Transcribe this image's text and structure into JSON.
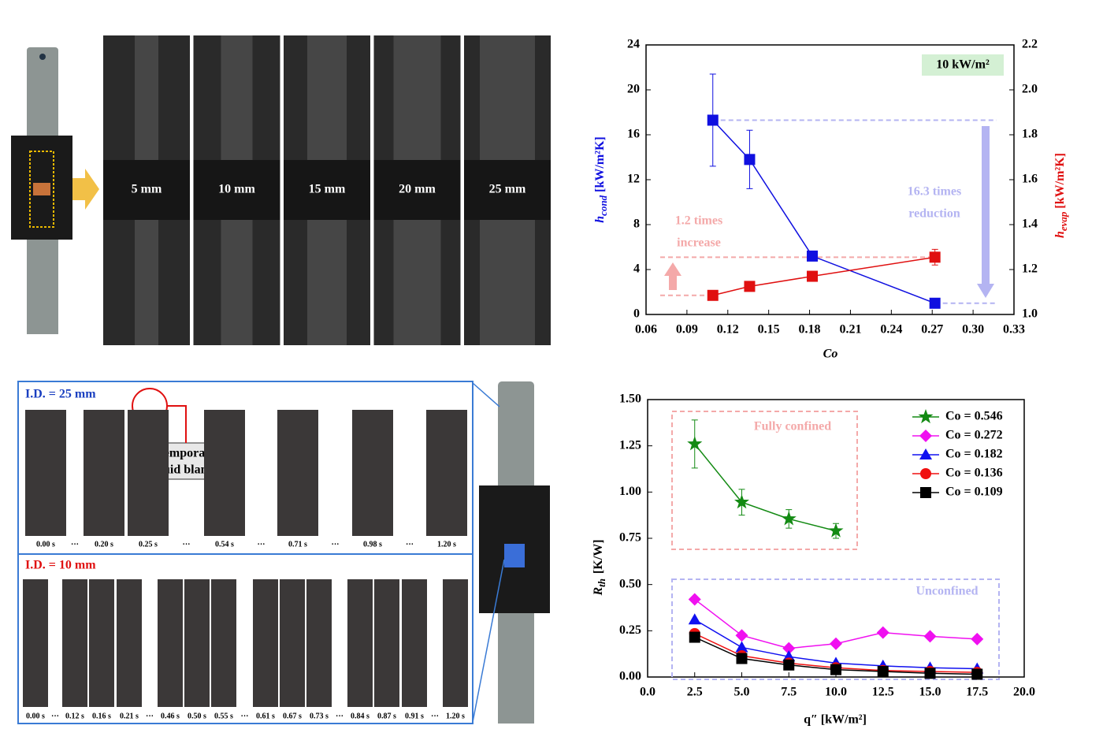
{
  "chart_data": [
    {
      "type": "line",
      "xlabel": "Co",
      "ylabel": {
        "symbol": "h",
        "subscript": "cond",
        "unit": "[kW/m²K]"
      },
      "y2label": {
        "symbol": "h",
        "subscript": "evap",
        "unit": "[kW/m²K]"
      },
      "x": [
        0.109,
        0.136,
        0.182,
        0.272
      ],
      "xlim": [
        0.06,
        0.33
      ],
      "xticks": [
        0.06,
        0.09,
        0.12,
        0.15,
        0.18,
        0.21,
        0.24,
        0.27,
        {
          "value": 0.3,
          "label": "0.30"
        },
        0.33
      ],
      "ylim": [
        0,
        24
      ],
      "yticks": [
        0,
        4,
        8,
        12,
        16,
        20,
        24
      ],
      "y2lim": [
        1,
        2.2
      ],
      "y2ticks": [
        {
          "value": 1,
          "label": "1.0"
        },
        1.2,
        1.4,
        1.6,
        1.8,
        {
          "value": 2,
          "label": "2.0"
        },
        2.2
      ],
      "series": [
        {
          "name": "h_cond",
          "color": "#1010e0",
          "values": [
            17.3,
            13.8,
            5.2,
            1.0
          ],
          "errors": [
            4.1,
            2.6,
            0.3,
            0.2
          ]
        },
        {
          "name": "h_evap",
          "color": "#e01010",
          "axis": "y2",
          "values": [
            1.085,
            1.125,
            1.17,
            1.255
          ],
          "errors": [
            0.01,
            0.015,
            0.02,
            0.035
          ]
        }
      ],
      "annotations": {
        "heat_flux": "10 kW/m²",
        "increase_1": "1.2 times",
        "increase_2": "increase",
        "reduction_1": "16.3 times",
        "reduction_2": "reduction"
      }
    },
    {
      "type": "line",
      "xlabel": "q″ [kW/m²]",
      "ylabel": {
        "symbol": "R",
        "subscript": "th",
        "unit": "[K/W]"
      },
      "x": [
        2.5,
        5,
        7.5,
        10,
        12.5,
        15,
        17.5
      ],
      "xlim": [
        0,
        20
      ],
      "xticks": [
        {
          "value": 0,
          "label": "0.0"
        },
        2.5,
        {
          "value": 5,
          "label": "5.0"
        },
        7.5,
        {
          "value": 10,
          "label": "10.0"
        },
        12.5,
        {
          "value": 15,
          "label": "15.0"
        },
        17.5,
        {
          "value": 20,
          "label": "20.0"
        }
      ],
      "ylim": [
        0,
        1.5
      ],
      "yticks": [
        {
          "value": 0,
          "label": "0.00"
        },
        0.25,
        {
          "value": 0.5,
          "label": "0.50"
        },
        0.75,
        {
          "value": 1,
          "label": "1.00"
        },
        1.25,
        {
          "value": 1.5,
          "label": "1.50"
        }
      ],
      "legend": "upper right",
      "series": [
        {
          "name": "Co = 0.546",
          "color": "#138a13",
          "marker": "star",
          "values": [
            1.26,
            0.945,
            0.855,
            0.79,
            null,
            null,
            null
          ],
          "errors": [
            0.13,
            0.07,
            0.05,
            0.04,
            null,
            null,
            null
          ]
        },
        {
          "name": "Co = 0.272",
          "color": "#f010f0",
          "marker": "diamond",
          "values": [
            0.42,
            0.225,
            0.155,
            0.18,
            0.24,
            0.22,
            0.205
          ]
        },
        {
          "name": "Co = 0.182",
          "color": "#1010f0",
          "marker": "triangle",
          "values": [
            0.31,
            0.16,
            0.11,
            0.075,
            0.06,
            0.05,
            0.045
          ]
        },
        {
          "name": "Co = 0.136",
          "color": "#f01010",
          "marker": "circle",
          "values": [
            0.235,
            0.115,
            0.075,
            0.05,
            0.035,
            0.03,
            0.025
          ]
        },
        {
          "name": "Co = 0.109",
          "color": "#000000",
          "marker": "square",
          "values": [
            0.215,
            0.1,
            0.065,
            0.04,
            0.03,
            0.02,
            0.015
          ]
        }
      ],
      "annotations": {
        "confined": "Fully confined",
        "unconfined": "Unconfined"
      }
    }
  ],
  "photos": {
    "diameters": [
      "5 mm",
      "10 mm",
      "15 mm",
      "20 mm",
      "25 mm"
    ],
    "panel_25": {
      "title": "I.D. = 25 mm",
      "times": [
        "0.00 s",
        "0.20 s",
        "0.25 s",
        "0.54 s",
        "0.71 s",
        "0.98 s",
        "1.20 s"
      ],
      "callout": [
        "Temporary",
        "liquid blanket"
      ]
    },
    "panel_10": {
      "title": "I.D. = 10 mm",
      "times": [
        "0.00 s",
        "0.12 s",
        "0.16 s",
        "0.21 s",
        "0.46 s",
        "0.50 s",
        "0.55 s",
        "0.61 s",
        "0.67 s",
        "0.73 s",
        "0.84 s",
        "0.87 s",
        "0.91 s",
        "1.20 s"
      ]
    },
    "ellipsis": "···"
  }
}
